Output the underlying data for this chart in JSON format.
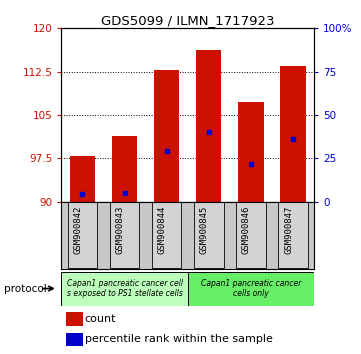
{
  "title": "GDS5099 / ILMN_1717923",
  "samples": [
    "GSM900842",
    "GSM900843",
    "GSM900844",
    "GSM900845",
    "GSM900846",
    "GSM900847"
  ],
  "counts": [
    98.0,
    101.3,
    112.8,
    116.2,
    107.2,
    113.5
  ],
  "percentile_ranks": [
    4.5,
    5.0,
    29.0,
    40.0,
    22.0,
    36.0
  ],
  "ylim_left": [
    90,
    120
  ],
  "ylim_right": [
    0,
    100
  ],
  "yticks_left": [
    90,
    97.5,
    105,
    112.5,
    120
  ],
  "yticks_right": [
    0,
    25,
    50,
    75,
    100
  ],
  "bar_color": "#cc1100",
  "percentile_color": "#0000cc",
  "group1_label": "Capan1 pancreatic cancer cell\ns exposed to PS1 stellate cells",
  "group2_label": "Capan1 pancreatic cancer\ncells only",
  "group1_color": "#bbffbb",
  "group2_color": "#66ee66",
  "protocol_label": "protocol",
  "legend_count": "count",
  "legend_percentile": "percentile rank within the sample",
  "bar_width": 0.6,
  "ybase": 90,
  "n_group1": 3,
  "n_group2": 3
}
